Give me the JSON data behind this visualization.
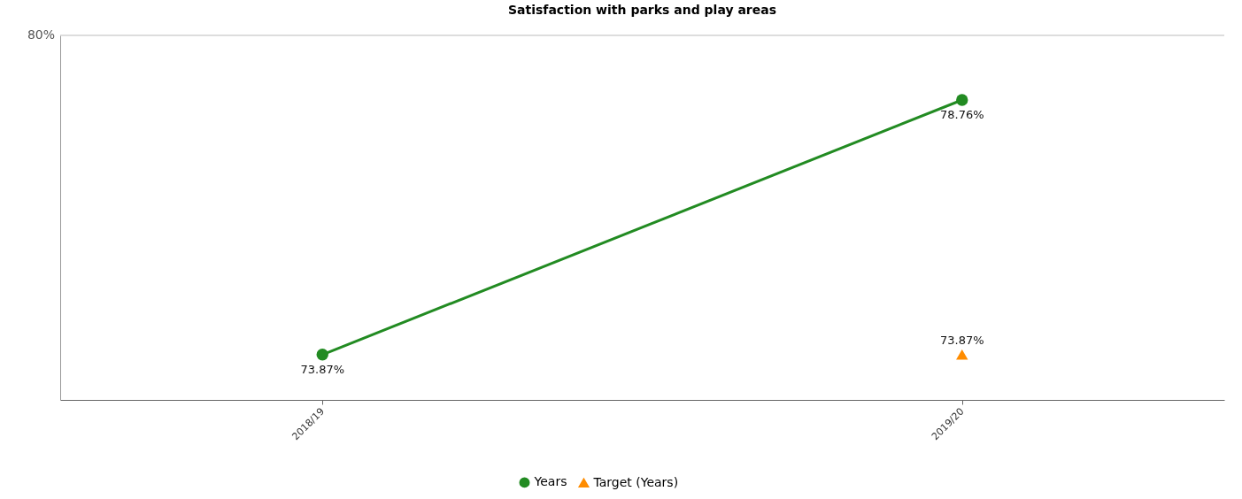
{
  "chart_data": {
    "type": "line",
    "title": "Satisfaction with parks and play areas",
    "categories": [
      "2018/19",
      "2019/20"
    ],
    "series": [
      {
        "name": "Years",
        "marker": "circle",
        "color": "#228b22",
        "values": [
          73.87,
          78.76
        ],
        "value_labels": [
          "73.87%",
          "78.76%"
        ]
      },
      {
        "name": "Target (Years)",
        "type": "scatter",
        "marker": "triangle",
        "color": "#ff8c00",
        "values": [
          null,
          73.87
        ],
        "value_labels": [
          null,
          "73.87%"
        ]
      }
    ],
    "ylim": [
      73,
      80
    ],
    "ref_lines": [
      {
        "axis": "y",
        "value": 80,
        "label": "80%",
        "color": "#bbbbbb"
      }
    ],
    "legend": "bottom"
  }
}
